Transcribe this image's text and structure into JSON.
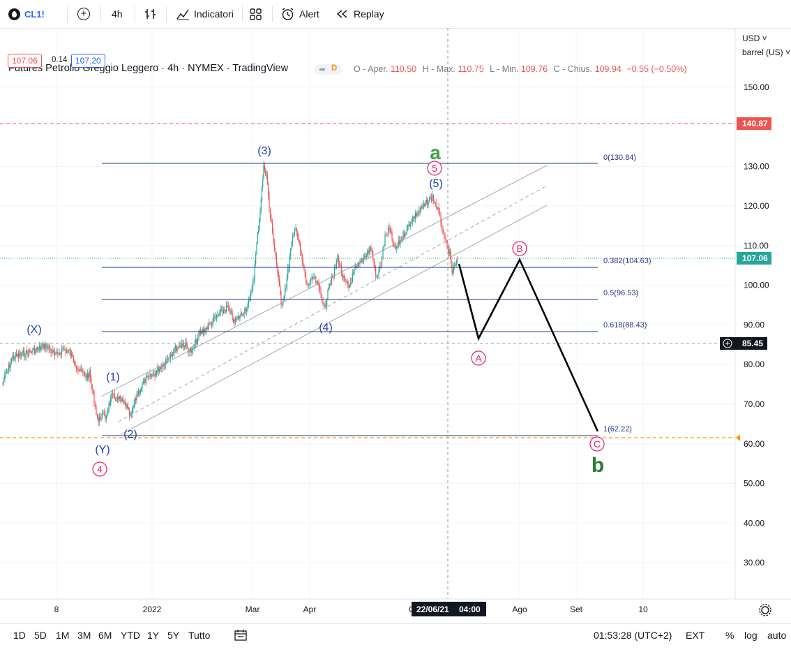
{
  "toolbar": {
    "symbol": "CL1!",
    "interval": "4h",
    "indicators": "Indicatori",
    "alert": "Alert",
    "replay": "Replay"
  },
  "legend": {
    "title": "Futures Petrolio Greggio Leggero · 4h · NYMEX · TradingView",
    "flag": "D",
    "open_label": "O - Aper.",
    "open": "110.50",
    "high_label": "H - Max.",
    "high": "110.75",
    "low_label": "L - Min.",
    "low": "109.76",
    "close_label": "C - Chius.",
    "close": "109.94",
    "change": "−0.55 (−0.50%)",
    "bid": "107.06",
    "spread": "0.14",
    "ask": "107.20"
  },
  "price_scale": {
    "currency": "USD",
    "unit": "barrel (US)",
    "ticks": [
      "150.00",
      "130.00",
      "120.00",
      "110.00",
      "100.00",
      "90.00",
      "80.00",
      "70.00",
      "60.00",
      "50.00",
      "40.00",
      "30.00"
    ],
    "alert_level": "140.87",
    "last_price": "107.06",
    "crosshair_price": "85.45"
  },
  "time_scale": {
    "ticks": [
      "8",
      "2022",
      "Mar",
      "Apr",
      "Ago",
      "Set",
      "10"
    ],
    "crosshair_date": "22/06/21",
    "crosshair_time": "04:00"
  },
  "fib": {
    "l0": "0(130.84)",
    "l382": "0.382(104.63)",
    "l5": "0.5(96.53)",
    "l618": "0.618(88.43)",
    "l1": "1(62.22)"
  },
  "wave_labels": {
    "x": "(X)",
    "y": "(Y)",
    "w1": "(1)",
    "w2": "(2)",
    "w3": "(3)",
    "w4": "(4)",
    "w5": "(5)",
    "circ4": "4",
    "circ5": "5",
    "a_big": "a",
    "b_big": "b",
    "circA": "A",
    "circB": "B",
    "circC": "C"
  },
  "bottom": {
    "ranges": [
      "1D",
      "5D",
      "1M",
      "3M",
      "6M",
      "YTD",
      "1Y",
      "5Y",
      "Tutto"
    ],
    "clock": "01:53:28 (UTC+2)",
    "ext": "EXT",
    "pct": "%",
    "log": "log",
    "auto": "auto"
  },
  "colors": {
    "up": "#26a69a",
    "down": "#ef5350",
    "wave_blue": "#1e40af",
    "wave_pink": "#e91e63",
    "wave_green": "#43a047",
    "fib": "#1e3a8a",
    "alert_red": "#ef5350",
    "last_teal": "#26a69a"
  }
}
